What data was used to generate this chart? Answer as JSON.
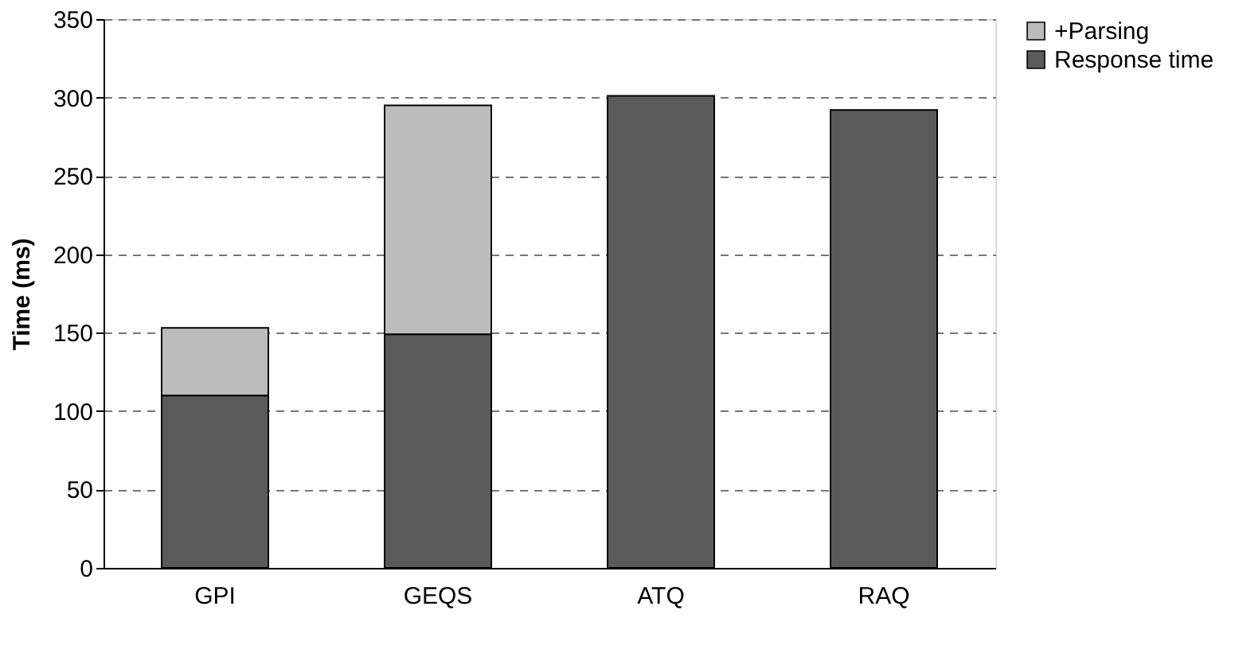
{
  "chart_data": {
    "type": "bar",
    "ylabel": "Time (ms)",
    "categories": [
      "GPI",
      "GEQS",
      "ATQ",
      "RAQ"
    ],
    "series": [
      {
        "name": "Response time",
        "color": "#5a5a5a",
        "values": [
          110,
          149,
          301,
          292
        ]
      },
      {
        "name": "+Parsing",
        "color": "#bcbcbc",
        "values": [
          43,
          146,
          null,
          null
        ]
      }
    ],
    "stacked": true,
    "ylim": [
      0,
      350
    ],
    "yticks": [
      0,
      50,
      100,
      150,
      200,
      250,
      300,
      350
    ],
    "grid": "y",
    "legend": "right"
  }
}
